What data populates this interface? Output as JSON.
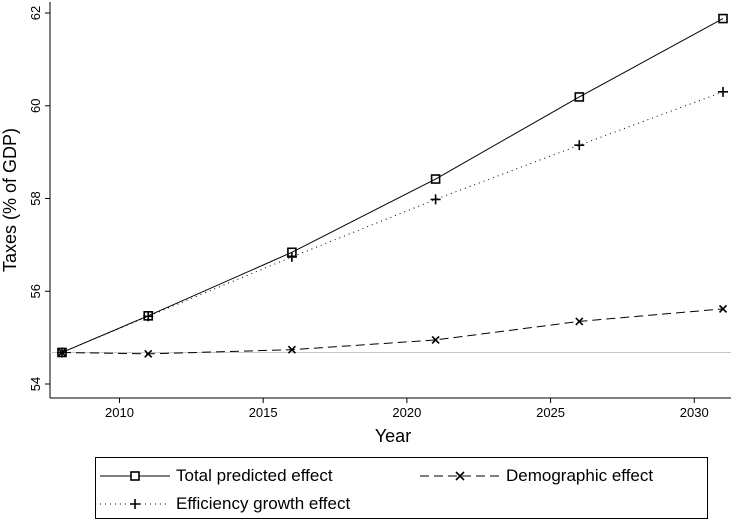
{
  "chart_data": {
    "type": "line",
    "xlabel": "Year",
    "ylabel": "Taxes (% of GDP)",
    "xlim": [
      2008,
      2031
    ],
    "ylim": [
      54,
      62
    ],
    "xticks": [
      2010,
      2015,
      2020,
      2025,
      2030
    ],
    "yticks": [
      54,
      56,
      58,
      60,
      62
    ],
    "grid": false,
    "baseline": 54.68,
    "legend_position": "bottom",
    "series": [
      {
        "name": "Total predicted effect",
        "line_style": "solid",
        "marker": "square",
        "x": [
          2008,
          2011,
          2016,
          2021,
          2026,
          2031
        ],
        "y": [
          54.68,
          55.47,
          56.84,
          58.42,
          60.19,
          61.88
        ]
      },
      {
        "name": "Demographic effect",
        "line_style": "dashed",
        "marker": "x",
        "x": [
          2008,
          2011,
          2016,
          2021,
          2026,
          2031
        ],
        "y": [
          54.68,
          54.65,
          54.74,
          54.95,
          55.35,
          55.62
        ]
      },
      {
        "name": "Efficiency growth effect",
        "line_style": "dotted",
        "marker": "plus",
        "x": [
          2008,
          2011,
          2016,
          2021,
          2026,
          2031
        ],
        "y": [
          54.68,
          55.46,
          56.74,
          57.98,
          59.15,
          60.3
        ]
      }
    ]
  },
  "colors": {
    "line": "#000000",
    "baseline": "#c8c8c8"
  }
}
